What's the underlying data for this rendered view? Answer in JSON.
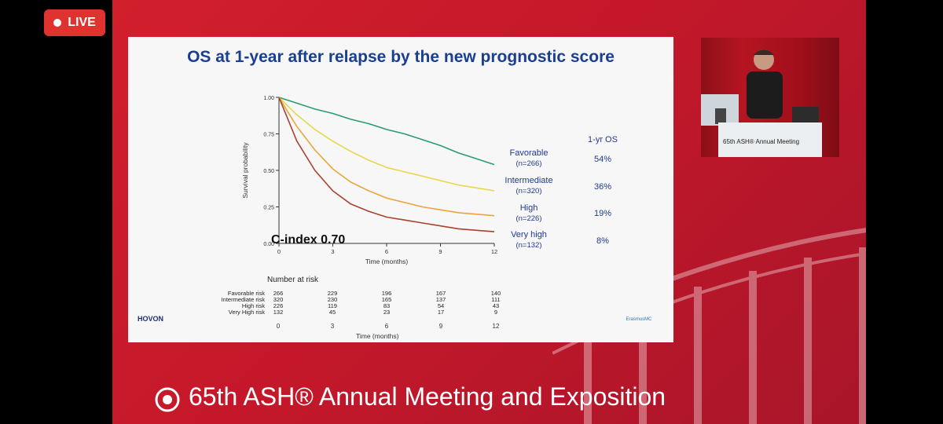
{
  "live_badge": {
    "label": "LIVE"
  },
  "slide": {
    "title": "OS at 1-year after relapse by the new prognostic score",
    "c_index": "C-index 0.70",
    "os_header": "1-yr OS",
    "groups": [
      {
        "name": "Favorable",
        "n": "(n=266)",
        "os": "54%"
      },
      {
        "name": "Intermediate",
        "n": "(n=320)",
        "os": "36%"
      },
      {
        "name": "High",
        "n": "(n=226)",
        "os": "19%"
      },
      {
        "name": "Very high",
        "n": "(n=132)",
        "os": "8%"
      }
    ],
    "number_at_risk": {
      "title": "Number at risk",
      "rows": [
        {
          "label": "Favorable risk",
          "values": [
            "266",
            "229",
            "196",
            "167",
            "140"
          ]
        },
        {
          "label": "Intermediate risk",
          "values": [
            "320",
            "230",
            "165",
            "137",
            "111"
          ]
        },
        {
          "label": "High risk",
          "values": [
            "226",
            "119",
            "83",
            "54",
            "43"
          ]
        },
        {
          "label": "Very High risk",
          "values": [
            "132",
            "45",
            "23",
            "17",
            "9"
          ]
        }
      ],
      "xticks": [
        "0",
        "3",
        "6",
        "9",
        "12"
      ],
      "xlabel": "Time (months)"
    },
    "logo_left": "HOVON",
    "logo_right": "ErasmusMC"
  },
  "chart_data": {
    "type": "line",
    "title": "OS at 1-year after relapse by the new prognostic score",
    "xlabel": "Time (months)",
    "ylabel": "Survival probability",
    "xlim": [
      0,
      12
    ],
    "ylim": [
      0,
      1
    ],
    "xticks": [
      0,
      3,
      6,
      9,
      12
    ],
    "yticks": [
      "0.00",
      "0.25",
      "0.50",
      "0.75",
      "1.00"
    ],
    "series": [
      {
        "name": "Favorable",
        "color": "#2a9d6f",
        "x": [
          0,
          1,
          2,
          3,
          4,
          5,
          6,
          7,
          8,
          9,
          10,
          11,
          12
        ],
        "y": [
          1.0,
          0.96,
          0.92,
          0.89,
          0.85,
          0.82,
          0.78,
          0.75,
          0.71,
          0.67,
          0.62,
          0.58,
          0.54
        ]
      },
      {
        "name": "Intermediate",
        "color": "#e6d84a",
        "x": [
          0,
          1,
          2,
          3,
          4,
          5,
          6,
          7,
          8,
          9,
          10,
          11,
          12
        ],
        "y": [
          1.0,
          0.88,
          0.78,
          0.7,
          0.63,
          0.57,
          0.52,
          0.49,
          0.46,
          0.43,
          0.4,
          0.38,
          0.36
        ]
      },
      {
        "name": "High",
        "color": "#eba53a",
        "x": [
          0,
          1,
          2,
          3,
          4,
          5,
          6,
          7,
          8,
          9,
          10,
          11,
          12
        ],
        "y": [
          1.0,
          0.8,
          0.64,
          0.51,
          0.42,
          0.36,
          0.31,
          0.28,
          0.25,
          0.23,
          0.21,
          0.2,
          0.19
        ]
      },
      {
        "name": "Very high",
        "color": "#a8432b",
        "x": [
          0,
          1,
          2,
          3,
          4,
          5,
          6,
          7,
          8,
          9,
          10,
          11,
          12
        ],
        "y": [
          1.0,
          0.7,
          0.5,
          0.36,
          0.27,
          0.22,
          0.18,
          0.16,
          0.14,
          0.12,
          0.1,
          0.09,
          0.08
        ]
      }
    ]
  },
  "webcam": {
    "podium_text": "65th ASH® Annual Meeting"
  },
  "footer": {
    "text": "65th ASH® Annual Meeting and Exposition"
  }
}
